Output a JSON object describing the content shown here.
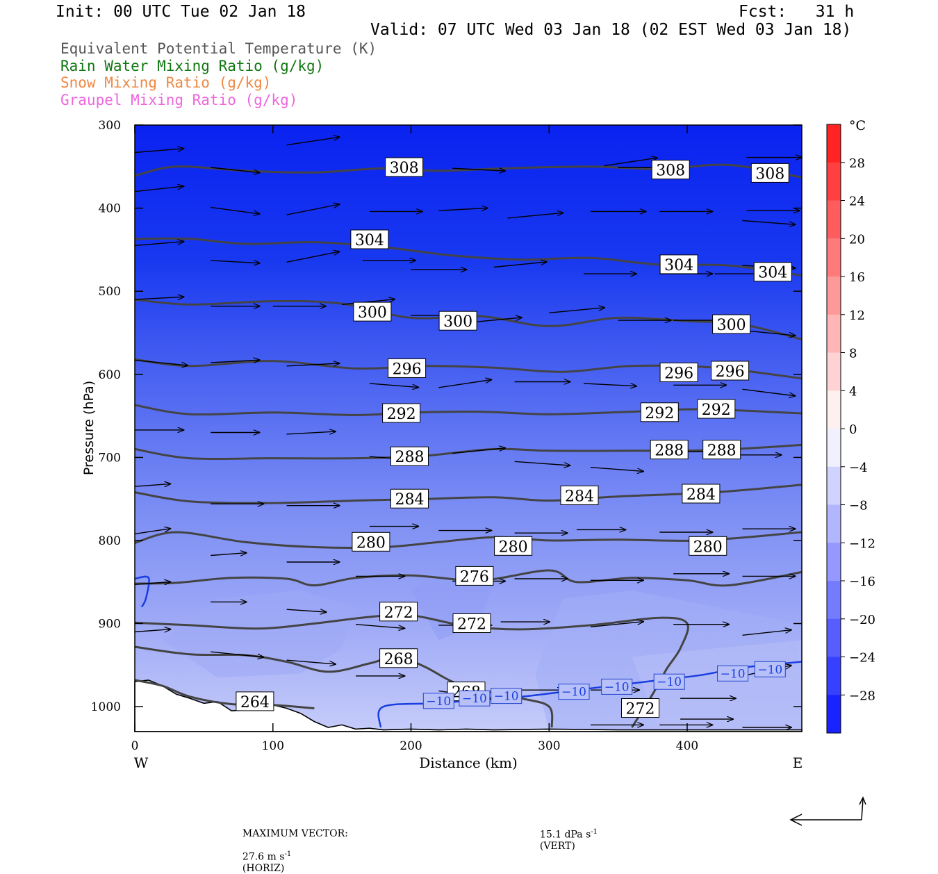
{
  "header": {
    "init": "Init: 00 UTC Tue 02 Jan 18",
    "fcst": "Fcst:   31 h",
    "valid": "Valid: 07 UTC Wed 03 Jan 18 (02 EST Wed 03 Jan 18)"
  },
  "fields": {
    "theta_e": "Equivalent Potential Temperature (K)",
    "rain": "Rain Water Mixing Ratio (g/kg)",
    "snow": "Snow Mixing Ratio (g/kg)",
    "graupel": "Graupel Mixing Ratio (g/kg)"
  },
  "footer": {
    "max_vector_label": "MAXIMUM VECTOR:",
    "horiz_value": "27.6 m s",
    "horiz_unit": "(HORIZ)",
    "vert_value": "15.1 dPa s",
    "vert_unit": "(VERT)",
    "exponent": "-1"
  },
  "colors": {
    "theta_contour": "#444444",
    "isotherm": "#1a3fe0",
    "rain": "#117711",
    "snow": "#ee8844",
    "graupel": "#ee66dd"
  },
  "chart_data": {
    "type": "cross-section",
    "xlabel": "Distance (km)",
    "ylabel": "Pressure (hPa)",
    "xlim": [
      0,
      483
    ],
    "ylim": [
      1030,
      300
    ],
    "x_ticks": [
      0,
      100,
      200,
      300,
      400
    ],
    "y_ticks": [
      300,
      400,
      500,
      600,
      700,
      800,
      900,
      1000
    ],
    "left_end": "W",
    "right_end": "E",
    "colorbar": {
      "unit": "°C",
      "range": [
        -32,
        32
      ],
      "step": 4,
      "labels": [
        28,
        24,
        20,
        16,
        12,
        8,
        4,
        0,
        -4,
        -8,
        -12,
        -16,
        -20,
        -24,
        -28
      ]
    },
    "theta_e_contours": [
      {
        "value": 308,
        "points": [
          [
            0,
            361
          ],
          [
            30,
            350
          ],
          [
            80,
            355
          ],
          [
            130,
            357
          ],
          [
            180,
            352
          ],
          [
            220,
            355
          ],
          [
            270,
            352
          ],
          [
            330,
            350
          ],
          [
            380,
            353
          ],
          [
            430,
            348
          ],
          [
            483,
            363
          ]
        ],
        "labels": [
          [
            195,
            351
          ],
          [
            388,
            354
          ],
          [
            460,
            358
          ]
        ]
      },
      {
        "value": 304,
        "points": [
          [
            0,
            437
          ],
          [
            40,
            437
          ],
          [
            80,
            443
          ],
          [
            130,
            441
          ],
          [
            180,
            447
          ],
          [
            230,
            457
          ],
          [
            280,
            462
          ],
          [
            330,
            460
          ],
          [
            380,
            468
          ],
          [
            430,
            469
          ],
          [
            483,
            481
          ]
        ],
        "labels": [
          [
            170,
            438
          ],
          [
            394,
            468
          ],
          [
            462,
            477
          ]
        ]
      },
      {
        "value": 300,
        "points": [
          [
            0,
            510
          ],
          [
            40,
            516
          ],
          [
            100,
            512
          ],
          [
            150,
            515
          ],
          [
            200,
            532
          ],
          [
            250,
            530
          ],
          [
            300,
            542
          ],
          [
            350,
            532
          ],
          [
            400,
            536
          ],
          [
            440,
            540
          ],
          [
            483,
            558
          ]
        ],
        "labels": [
          [
            172,
            525
          ],
          [
            234,
            536
          ],
          [
            432,
            540
          ]
        ]
      },
      {
        "value": 296,
        "points": [
          [
            0,
            582
          ],
          [
            40,
            590
          ],
          [
            100,
            584
          ],
          [
            160,
            593
          ],
          [
            210,
            590
          ],
          [
            260,
            592
          ],
          [
            310,
            597
          ],
          [
            360,
            590
          ],
          [
            420,
            592
          ],
          [
            483,
            605
          ]
        ],
        "labels": [
          [
            197,
            593
          ],
          [
            394,
            598
          ],
          [
            431,
            596
          ]
        ]
      },
      {
        "value": 292,
        "points": [
          [
            0,
            637
          ],
          [
            40,
            648
          ],
          [
            100,
            646
          ],
          [
            160,
            649
          ],
          [
            200,
            646
          ],
          [
            250,
            645
          ],
          [
            300,
            648
          ],
          [
            360,
            645
          ],
          [
            410,
            642
          ],
          [
            483,
            647
          ]
        ],
        "labels": [
          [
            193,
            647
          ],
          [
            380,
            646
          ],
          [
            421,
            642
          ]
        ]
      },
      {
        "value": 288,
        "points": [
          [
            0,
            690
          ],
          [
            40,
            701
          ],
          [
            100,
            701
          ],
          [
            160,
            701
          ],
          [
            210,
            698
          ],
          [
            260,
            690
          ],
          [
            300,
            692
          ],
          [
            360,
            692
          ],
          [
            420,
            691
          ],
          [
            483,
            685
          ]
        ],
        "labels": [
          [
            199,
            699
          ],
          [
            387,
            691
          ],
          [
            425,
            691
          ]
        ]
      },
      {
        "value": 284,
        "points": [
          [
            0,
            742
          ],
          [
            40,
            753
          ],
          [
            100,
            755
          ],
          [
            160,
            752
          ],
          [
            210,
            750
          ],
          [
            260,
            748
          ],
          [
            300,
            752
          ],
          [
            350,
            747
          ],
          [
            420,
            742
          ],
          [
            483,
            733
          ]
        ],
        "labels": [
          [
            199,
            750
          ],
          [
            322,
            746
          ],
          [
            410,
            744
          ]
        ]
      },
      {
        "value": 280,
        "points": [
          [
            0,
            803
          ],
          [
            30,
            790
          ],
          [
            80,
            802
          ],
          [
            130,
            808
          ],
          [
            180,
            808
          ],
          [
            220,
            802
          ],
          [
            260,
            796
          ],
          [
            300,
            800
          ],
          [
            350,
            799
          ],
          [
            410,
            800
          ],
          [
            483,
            790
          ]
        ],
        "labels": [
          [
            171,
            802
          ],
          [
            274,
            807
          ],
          [
            415,
            807
          ]
        ]
      },
      {
        "value": 276,
        "points": [
          [
            0,
            852
          ],
          [
            30,
            851
          ],
          [
            70,
            845
          ],
          [
            110,
            846
          ],
          [
            130,
            854
          ],
          [
            160,
            845
          ],
          [
            200,
            842
          ],
          [
            250,
            848
          ],
          [
            300,
            836
          ],
          [
            320,
            850
          ],
          [
            360,
            845
          ],
          [
            400,
            848
          ],
          [
            430,
            854
          ],
          [
            483,
            838
          ]
        ],
        "labels": [
          [
            246,
            843
          ]
        ]
      },
      {
        "value": 272,
        "points": [
          [
            0,
            899
          ],
          [
            40,
            902
          ],
          [
            90,
            906
          ],
          [
            130,
            900
          ],
          [
            170,
            892
          ],
          [
            200,
            890
          ],
          [
            240,
            903
          ],
          [
            280,
            907
          ],
          [
            330,
            902
          ],
          [
            380,
            893
          ],
          [
            400,
            900
          ],
          [
            395,
            930
          ],
          [
            385,
            955
          ],
          [
            375,
            985
          ],
          [
            360,
            1025
          ]
        ],
        "labels": [
          [
            191,
            886
          ],
          [
            244,
            900
          ],
          [
            366,
            1002
          ]
        ]
      },
      {
        "value": 268,
        "points": [
          [
            0,
            928
          ],
          [
            40,
            937
          ],
          [
            80,
            938
          ],
          [
            110,
            946
          ],
          [
            140,
            958
          ],
          [
            170,
            948
          ],
          [
            190,
            940
          ],
          [
            210,
            952
          ],
          [
            230,
            970
          ],
          [
            250,
            980
          ],
          [
            280,
            990
          ],
          [
            300,
            1000
          ],
          [
            302,
            1025
          ]
        ],
        "labels": [
          [
            191,
            942
          ],
          [
            240,
            982
          ]
        ]
      },
      {
        "value": 264,
        "points": [
          [
            0,
            968
          ],
          [
            20,
            975
          ],
          [
            40,
            988
          ],
          [
            70,
            997
          ],
          [
            100,
            998
          ],
          [
            130,
            1002
          ]
        ],
        "labels": [
          [
            87,
            994
          ]
        ]
      }
    ],
    "isotherms": [
      {
        "value": -10,
        "points": [
          [
            0,
            846
          ],
          [
            10,
            845
          ],
          [
            8,
            870
          ],
          [
            5,
            880
          ]
        ],
        "labels": []
      },
      {
        "value": -10,
        "points": [
          [
            178,
            1025
          ],
          [
            180,
            1000
          ],
          [
            220,
            996
          ],
          [
            240,
            993
          ],
          [
            280,
            988
          ],
          [
            320,
            980
          ],
          [
            350,
            974
          ],
          [
            380,
            968
          ],
          [
            410,
            962
          ],
          [
            440,
            953
          ],
          [
            483,
            946
          ]
        ],
        "labels": [
          [
            220,
            993
          ],
          [
            246,
            990
          ],
          [
            269,
            987
          ],
          [
            318,
            982
          ],
          [
            349,
            976
          ],
          [
            387,
            970
          ],
          [
            433,
            960
          ],
          [
            460,
            955
          ]
        ]
      }
    ],
    "wind_vectors": [
      [
        0,
        333,
        37,
        -3
      ],
      [
        55,
        351,
        37,
        4
      ],
      [
        110,
        324,
        40,
        -6
      ],
      [
        230,
        352,
        40,
        2
      ],
      [
        340,
        349,
        40,
        -6
      ],
      [
        350,
        351,
        42,
        0
      ],
      [
        443,
        339,
        42,
        0
      ],
      [
        0,
        380,
        37,
        -4
      ],
      [
        55,
        399,
        37,
        5
      ],
      [
        110,
        408,
        40,
        -8
      ],
      [
        170,
        404,
        40,
        0
      ],
      [
        220,
        403,
        37,
        -2
      ],
      [
        270,
        412,
        42,
        -4
      ],
      [
        330,
        404,
        42,
        0
      ],
      [
        380,
        404,
        40,
        0
      ],
      [
        443,
        403,
        40,
        0
      ],
      [
        440,
        415,
        40,
        3
      ],
      [
        0,
        445,
        37,
        -3
      ],
      [
        55,
        463,
        37,
        2
      ],
      [
        110,
        465,
        40,
        -8
      ],
      [
        165,
        463,
        40,
        0
      ],
      [
        200,
        474,
        42,
        0
      ],
      [
        260,
        471,
        40,
        -4
      ],
      [
        325,
        479,
        40,
        0
      ],
      [
        380,
        479,
        40,
        0
      ],
      [
        420,
        479,
        40,
        0
      ],
      [
        440,
        469,
        40,
        2
      ],
      [
        0,
        510,
        37,
        -2
      ],
      [
        55,
        518,
        37,
        0
      ],
      [
        100,
        518,
        40,
        0
      ],
      [
        150,
        516,
        40,
        -4
      ],
      [
        200,
        529,
        40,
        0
      ],
      [
        240,
        538,
        42,
        -4
      ],
      [
        300,
        526,
        42,
        -4
      ],
      [
        350,
        535,
        40,
        0
      ],
      [
        390,
        535,
        40,
        0
      ],
      [
        440,
        547,
        40,
        4
      ],
      [
        0,
        583,
        40,
        4
      ],
      [
        55,
        586,
        37,
        -2
      ],
      [
        110,
        590,
        40,
        -2
      ],
      [
        170,
        611,
        37,
        3
      ],
      [
        220,
        616,
        40,
        -6
      ],
      [
        275,
        609,
        42,
        0
      ],
      [
        325,
        611,
        40,
        2
      ],
      [
        390,
        613,
        40,
        0
      ],
      [
        440,
        618,
        40,
        5
      ],
      [
        0,
        667,
        37,
        0
      ],
      [
        55,
        670,
        37,
        0
      ],
      [
        110,
        672,
        37,
        -2
      ],
      [
        170,
        699,
        40,
        3
      ],
      [
        230,
        695,
        40,
        -4
      ],
      [
        275,
        705,
        42,
        3
      ],
      [
        330,
        712,
        40,
        3
      ],
      [
        380,
        693,
        40,
        0
      ],
      [
        430,
        697,
        40,
        0
      ],
      [
        0,
        735,
        27,
        -2
      ],
      [
        55,
        756,
        40,
        0
      ],
      [
        110,
        758,
        40,
        0
      ],
      [
        170,
        783,
        37,
        0
      ],
      [
        220,
        788,
        40,
        0
      ],
      [
        275,
        791,
        40,
        0
      ],
      [
        320,
        787,
        37,
        0
      ],
      [
        380,
        790,
        40,
        0
      ],
      [
        440,
        786,
        40,
        0
      ],
      [
        0,
        792,
        27,
        -4
      ],
      [
        55,
        818,
        27,
        -2
      ],
      [
        110,
        826,
        40,
        0
      ],
      [
        160,
        843,
        37,
        0
      ],
      [
        230,
        849,
        40,
        0
      ],
      [
        275,
        846,
        40,
        0
      ],
      [
        330,
        848,
        40,
        0
      ],
      [
        390,
        840,
        42,
        0
      ],
      [
        440,
        843,
        40,
        0
      ],
      [
        0,
        853,
        27,
        -2
      ],
      [
        55,
        874,
        27,
        0
      ],
      [
        110,
        883,
        30,
        2
      ],
      [
        160,
        901,
        37,
        3
      ],
      [
        220,
        902,
        40,
        0
      ],
      [
        265,
        898,
        37,
        0
      ],
      [
        330,
        904,
        40,
        -4
      ],
      [
        390,
        901,
        42,
        0
      ],
      [
        440,
        914,
        37,
        -4
      ],
      [
        0,
        910,
        27,
        -2
      ],
      [
        55,
        934,
        40,
        4
      ],
      [
        110,
        944,
        37,
        3
      ],
      [
        160,
        963,
        37,
        0
      ],
      [
        220,
        981,
        40,
        6
      ],
      [
        275,
        980,
        37,
        0
      ],
      [
        330,
        980,
        37,
        0
      ],
      [
        395,
        990,
        42,
        0
      ],
      [
        440,
        963,
        37,
        -8
      ],
      [
        440,
        1025,
        37,
        0
      ],
      [
        330,
        1022,
        40,
        0
      ],
      [
        380,
        1022,
        40,
        0
      ],
      [
        395,
        1015,
        40,
        0
      ]
    ]
  }
}
